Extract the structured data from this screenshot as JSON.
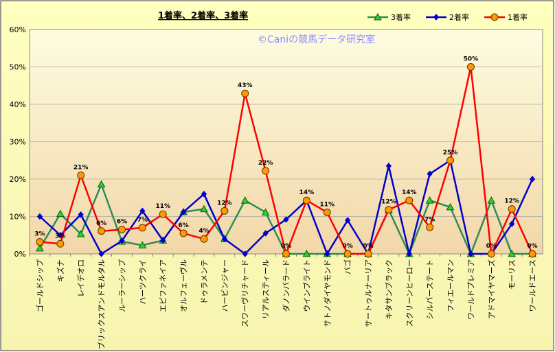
{
  "chart_data": {
    "type": "line",
    "title": "1着率、2着率、3着率",
    "watermark": "©Caniの競馬データ研究室",
    "ylim": [
      0,
      60
    ],
    "y_ticks": [
      "0%",
      "10%",
      "20%",
      "30%",
      "40%",
      "50%",
      "60%"
    ],
    "categories": [
      "ゴールドシップ",
      "キズナ",
      "レイデオロ",
      "ブリックスアンドモルタル",
      "ルーラーシップ",
      "ハーツクライ",
      "エピファネイア",
      "オルフェーヴル",
      "ドゥラメンテ",
      "ハービンジャー",
      "スワーヴリチャード",
      "リアルスティール",
      "ダノンバラード",
      "ウインブライト",
      "サトノダイヤモンド",
      "バゴ",
      "サートゥルナーリア",
      "キタサンブラック",
      "スクリーンヒーロー",
      "シルバーステート",
      "フィエールマン",
      "ワールドプレミア",
      "アドマイヤマーズ",
      "モーリス",
      "ワールドエース"
    ],
    "legend_position": "top-right",
    "series": [
      {
        "name": "3着率",
        "color": "#2e8b57",
        "marker": "triangle",
        "marker_fill": "#33cc33",
        "values": [
          1.5,
          10.7,
          5.3,
          18.6,
          3.3,
          2.3,
          3.6,
          11.2,
          12.0,
          4.0,
          14.3,
          11.1,
          0,
          0,
          0,
          0,
          0,
          11.8,
          0,
          14.3,
          12.5,
          0,
          14.3,
          0,
          0
        ]
      },
      {
        "name": "2着率",
        "color": "#0000cc",
        "marker": "diamond",
        "marker_fill": "#0000cc",
        "values": [
          10.0,
          5.0,
          10.5,
          0,
          3.5,
          11.5,
          3.6,
          11.2,
          16.0,
          4.0,
          0,
          5.5,
          9.2,
          14.3,
          0,
          9.0,
          0,
          23.5,
          0,
          21.4,
          25.0,
          0,
          0,
          8.0,
          20.0
        ]
      },
      {
        "name": "1着率",
        "color": "#ff0000",
        "marker": "circle",
        "marker_fill": "#ff9900",
        "values": [
          3.2,
          2.7,
          21.0,
          6.1,
          6.5,
          7.0,
          10.6,
          5.5,
          4.0,
          11.5,
          42.9,
          22.2,
          0,
          14.3,
          11.1,
          0,
          0,
          11.8,
          14.3,
          7.1,
          25.0,
          50.0,
          0,
          12.0,
          0
        ],
        "labels": [
          "3%",
          "3%",
          "21%",
          "6%",
          "6%",
          "7%",
          "11%",
          "6%",
          "4%",
          "12%",
          "43%",
          "22%",
          "0%",
          "14%",
          "11%",
          "0%",
          "0%",
          "12%",
          "14%",
          "7%",
          "25%",
          "50%",
          "0%",
          "12%",
          "0%"
        ]
      }
    ]
  }
}
